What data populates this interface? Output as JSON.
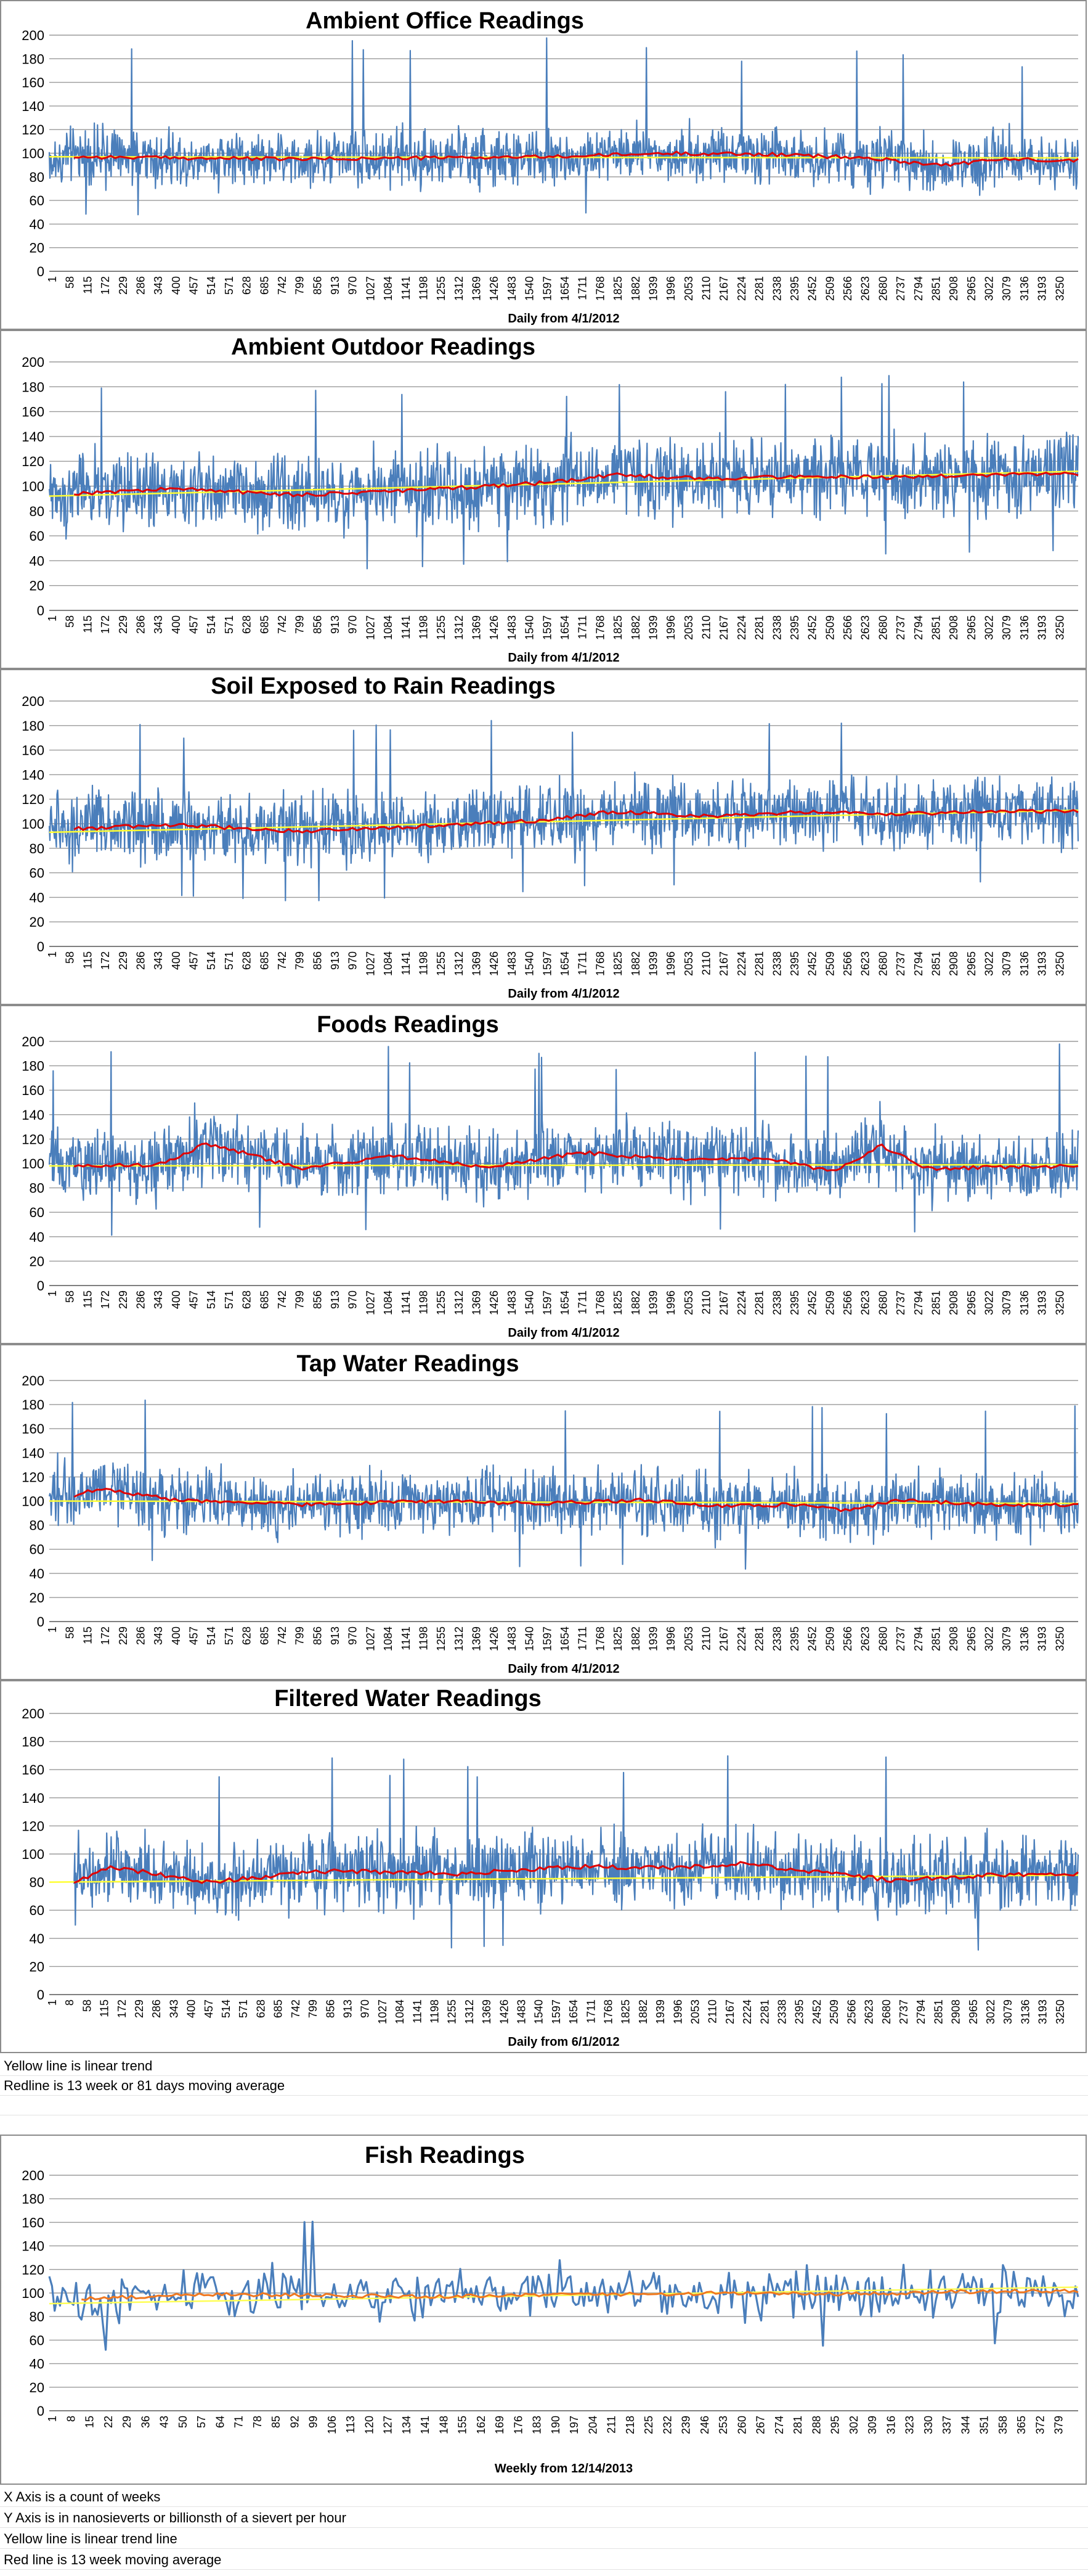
{
  "colors": {
    "readings_line": "#4a7ebb",
    "moving_average": "#e00000",
    "trend": "#ffff33",
    "fish_moving_average": "#f07820",
    "fish_trend": "#ffff55"
  },
  "notes_middle": [
    "Yellow line is linear trend",
    "Redline is 13 week or 81 days moving average"
  ],
  "notes_bottom": [
    "X Axis is a count of weeks",
    "Y Axis is in nanosieverts or billionsth of a sievert per hour",
    "Yellow line is linear trend line",
    "Red line is 13 week moving average"
  ],
  "chart_data": [
    {
      "type": "line",
      "title": "Ambient Office Readings",
      "xlabel": "Daily from 4/1/2012",
      "ylabel": "",
      "ylim": [
        0,
        200
      ],
      "y_ticks": [
        0,
        20,
        40,
        60,
        80,
        100,
        120,
        140,
        160,
        180,
        200
      ],
      "x_tick_labels": [
        "1",
        "58",
        "115",
        "172",
        "229",
        "286",
        "343",
        "400",
        "457",
        "514",
        "571",
        "628",
        "685",
        "742",
        "799",
        "856",
        "913",
        "970",
        "1027",
        "1084",
        "1141",
        "1198",
        "1255",
        "1312",
        "1369",
        "1426",
        "1483",
        "1540",
        "1597",
        "1654",
        "1711",
        "1768",
        "1825",
        "1882",
        "1939",
        "1996",
        "2053",
        "2110",
        "2167",
        "2224",
        "2281",
        "2338",
        "2395",
        "2452",
        "2509",
        "2566",
        "2623",
        "2680",
        "2737",
        "2794",
        "2851",
        "2908",
        "2965",
        "3022",
        "3079",
        "3136",
        "3193",
        "3250"
      ],
      "x_range": [
        1,
        3280
      ],
      "daily_readings": {
        "center": 95,
        "spread": 22,
        "spike_max": 198
      },
      "series": [
        {
          "kind": "trend",
          "start": 97,
          "end": 96
        },
        {
          "kind": "moving_average",
          "points": [
            [
              80,
              97
            ],
            [
              400,
              96
            ],
            [
              800,
              95
            ],
            [
              1200,
              96
            ],
            [
              1600,
              97
            ],
            [
              2000,
              100
            ],
            [
              2300,
              99
            ],
            [
              2600,
              96
            ],
            [
              2850,
              90
            ],
            [
              3050,
              95
            ],
            [
              3280,
              94
            ]
          ]
        }
      ],
      "grid": true
    },
    {
      "type": "line",
      "title": "Ambient Outdoor Readings",
      "xlabel": "Daily from 4/1/2012",
      "ylabel": "",
      "ylim": [
        0,
        200
      ],
      "y_ticks": [
        0,
        20,
        40,
        60,
        80,
        100,
        120,
        140,
        160,
        180,
        200
      ],
      "x_tick_labels": [
        "1",
        "58",
        "115",
        "172",
        "229",
        "286",
        "343",
        "400",
        "457",
        "514",
        "571",
        "628",
        "685",
        "742",
        "799",
        "856",
        "913",
        "970",
        "1027",
        "1084",
        "1141",
        "1198",
        "1255",
        "1312",
        "1369",
        "1426",
        "1483",
        "1540",
        "1597",
        "1654",
        "1711",
        "1768",
        "1825",
        "1882",
        "1939",
        "1996",
        "2053",
        "2110",
        "2167",
        "2224",
        "2281",
        "2338",
        "2395",
        "2452",
        "2509",
        "2566",
        "2623",
        "2680",
        "2737",
        "2794",
        "2851",
        "2908",
        "2965",
        "3022",
        "3079",
        "3136",
        "3193",
        "3250"
      ],
      "x_range": [
        1,
        3280
      ],
      "daily_readings": {
        "center": 100,
        "spread": 28,
        "spike_max": 190
      },
      "series": [
        {
          "kind": "trend",
          "start": 92,
          "end": 112
        },
        {
          "kind": "moving_average",
          "points": [
            [
              80,
              94
            ],
            [
              400,
              98
            ],
            [
              800,
              93
            ],
            [
              1200,
              97
            ],
            [
              1600,
              103
            ],
            [
              1800,
              109
            ],
            [
              2100,
              106
            ],
            [
              2400,
              108
            ],
            [
              2700,
              107
            ],
            [
              3000,
              109
            ],
            [
              3280,
              110
            ]
          ]
        }
      ],
      "grid": true
    },
    {
      "type": "line",
      "title": "Soil Exposed to Rain Readings",
      "xlabel": "Daily from 4/1/2012",
      "ylabel": "",
      "ylim": [
        0,
        200
      ],
      "y_ticks": [
        0,
        20,
        40,
        60,
        80,
        100,
        120,
        140,
        160,
        180,
        200
      ],
      "x_tick_labels": [
        "1",
        "58",
        "115",
        "172",
        "229",
        "286",
        "343",
        "400",
        "457",
        "514",
        "571",
        "628",
        "685",
        "742",
        "799",
        "856",
        "913",
        "970",
        "1027",
        "1084",
        "1141",
        "1198",
        "1255",
        "1312",
        "1369",
        "1426",
        "1483",
        "1540",
        "1597",
        "1654",
        "1711",
        "1768",
        "1825",
        "1882",
        "1939",
        "1996",
        "2053",
        "2110",
        "2167",
        "2224",
        "2281",
        "2338",
        "2395",
        "2452",
        "2509",
        "2566",
        "2623",
        "2680",
        "2737",
        "2794",
        "2851",
        "2908",
        "2965",
        "3022",
        "3079",
        "3136",
        "3193",
        "3250"
      ],
      "x_range": [
        1,
        3280
      ],
      "daily_readings": {
        "center": 100,
        "spread": 26,
        "spike_max": 188
      },
      "series": [
        {
          "kind": "trend",
          "start": 93,
          "end": 111
        },
        {
          "kind": "moving_average",
          "points": [
            [
              80,
              96
            ],
            [
              400,
              99
            ],
            [
              800,
              94
            ],
            [
              1200,
              98
            ],
            [
              1600,
              103
            ],
            [
              1800,
              110
            ],
            [
              2100,
              106
            ],
            [
              2450,
              110
            ],
            [
              2700,
              108
            ],
            [
              3000,
              110
            ],
            [
              3280,
              110
            ]
          ]
        }
      ],
      "grid": true
    },
    {
      "type": "line",
      "title": "Foods Readings",
      "xlabel": "Daily from 4/1/2012",
      "ylabel": "",
      "ylim": [
        0,
        200
      ],
      "y_ticks": [
        0,
        20,
        40,
        60,
        80,
        100,
        120,
        140,
        160,
        180,
        200
      ],
      "x_tick_labels": [
        "1",
        "58",
        "115",
        "172",
        "229",
        "286",
        "343",
        "400",
        "457",
        "514",
        "571",
        "628",
        "685",
        "742",
        "799",
        "856",
        "913",
        "970",
        "1027",
        "1084",
        "1141",
        "1198",
        "1255",
        "1312",
        "1369",
        "1426",
        "1483",
        "1540",
        "1597",
        "1654",
        "1711",
        "1768",
        "1825",
        "1882",
        "1939",
        "1996",
        "2053",
        "2110",
        "2167",
        "2224",
        "2281",
        "2338",
        "2395",
        "2452",
        "2509",
        "2566",
        "2623",
        "2680",
        "2737",
        "2794",
        "2851",
        "2908",
        "2965",
        "3022",
        "3079",
        "3136",
        "3193",
        "3250"
      ],
      "x_range": [
        1,
        3280
      ],
      "daily_readings": {
        "center": 98,
        "spread": 26,
        "spike_max": 200
      },
      "series": [
        {
          "kind": "trend",
          "start": 98,
          "end": 99
        },
        {
          "kind": "moving_average",
          "points": [
            [
              80,
              98
            ],
            [
              350,
              99
            ],
            [
              500,
              116
            ],
            [
              600,
              110
            ],
            [
              800,
              96
            ],
            [
              1100,
              106
            ],
            [
              1400,
              97
            ],
            [
              1700,
              109
            ],
            [
              2000,
              103
            ],
            [
              2300,
              104
            ],
            [
              2500,
              93
            ],
            [
              2650,
              115
            ],
            [
              2800,
              96
            ],
            [
              3100,
              97
            ],
            [
              3280,
              98
            ]
          ]
        }
      ],
      "grid": true
    },
    {
      "type": "line",
      "title": "Tap Water Readings",
      "xlabel": "Daily from 4/1/2012",
      "ylabel": "",
      "ylim": [
        0,
        200
      ],
      "y_ticks": [
        0,
        20,
        40,
        60,
        80,
        100,
        120,
        140,
        160,
        180,
        200
      ],
      "x_tick_labels": [
        "1",
        "58",
        "115",
        "172",
        "229",
        "286",
        "343",
        "400",
        "457",
        "514",
        "571",
        "628",
        "685",
        "742",
        "799",
        "856",
        "913",
        "970",
        "1027",
        "1084",
        "1141",
        "1198",
        "1255",
        "1312",
        "1369",
        "1426",
        "1483",
        "1540",
        "1597",
        "1654",
        "1711",
        "1768",
        "1825",
        "1882",
        "1939",
        "1996",
        "2053",
        "2110",
        "2167",
        "2224",
        "2281",
        "2338",
        "2395",
        "2452",
        "2509",
        "2566",
        "2623",
        "2680",
        "2737",
        "2794",
        "2851",
        "2908",
        "2965",
        "3022",
        "3079",
        "3136",
        "3193",
        "3250"
      ],
      "x_range": [
        1,
        3280
      ],
      "daily_readings": {
        "center": 98,
        "spread": 24,
        "spike_max": 188
      },
      "series": [
        {
          "kind": "trend",
          "start": 100,
          "end": 98
        },
        {
          "kind": "moving_average",
          "points": [
            [
              80,
              104
            ],
            [
              150,
              110
            ],
            [
              400,
              101
            ],
            [
              800,
              97
            ],
            [
              1200,
              100
            ],
            [
              1600,
              98
            ],
            [
              1900,
              101
            ],
            [
              2100,
              96
            ],
            [
              2400,
              97
            ],
            [
              2550,
              92
            ],
            [
              2700,
              101
            ],
            [
              3000,
              97
            ],
            [
              3280,
              97
            ]
          ]
        }
      ],
      "grid": true
    },
    {
      "type": "line",
      "title": "Filtered Water Readings",
      "xlabel": "Daily from 6/1/2012",
      "ylabel": "",
      "ylim": [
        0,
        200
      ],
      "y_ticks": [
        0,
        20,
        40,
        60,
        80,
        100,
        120,
        140,
        160,
        180,
        200
      ],
      "x_tick_labels": [
        "1",
        "8",
        "58",
        "115",
        "172",
        "229",
        "286",
        "343",
        "400",
        "457",
        "514",
        "571",
        "628",
        "685",
        "742",
        "799",
        "856",
        "913",
        "970",
        "1027",
        "1084",
        "1141",
        "1198",
        "1255",
        "1312",
        "1369",
        "1426",
        "1483",
        "1540",
        "1597",
        "1654",
        "1711",
        "1768",
        "1825",
        "1882",
        "1939",
        "1996",
        "2053",
        "2110",
        "2167",
        "2224",
        "2281",
        "2338",
        "2395",
        "2452",
        "2509",
        "2566",
        "2623",
        "2680",
        "2737",
        "2794",
        "2851",
        "2908",
        "2965",
        "3022",
        "3079",
        "3136",
        "3193",
        "3250"
      ],
      "x_range": [
        1,
        3280
      ],
      "daily_readings": {
        "center": 85,
        "spread": 24,
        "spike_max": 176
      },
      "series": [
        {
          "kind": "trend",
          "start": 80,
          "end": 85
        },
        {
          "kind": "moving_average",
          "points": [
            [
              80,
              80
            ],
            [
              200,
              91
            ],
            [
              500,
              80
            ],
            [
              900,
              88
            ],
            [
              1300,
              86
            ],
            [
              1700,
              91
            ],
            [
              2000,
              90
            ],
            [
              2200,
              93
            ],
            [
              2500,
              86
            ],
            [
              2700,
              81
            ],
            [
              3000,
              85
            ],
            [
              3280,
              86
            ]
          ]
        }
      ],
      "grid": true
    },
    {
      "type": "line",
      "title": "Fish Readings",
      "xlabel": "Weekly from 12/14/2013",
      "ylabel": "",
      "ylim": [
        0,
        200
      ],
      "y_ticks": [
        0,
        20,
        40,
        60,
        80,
        100,
        120,
        140,
        160,
        180,
        200
      ],
      "x_tick_labels": [
        "1",
        "8",
        "15",
        "22",
        "29",
        "36",
        "43",
        "50",
        "57",
        "64",
        "71",
        "78",
        "85",
        "92",
        "99",
        "106",
        "113",
        "120",
        "127",
        "134",
        "141",
        "148",
        "155",
        "162",
        "169",
        "176",
        "183",
        "190",
        "197",
        "204",
        "211",
        "218",
        "225",
        "232",
        "239",
        "246",
        "253",
        "260",
        "267",
        "274",
        "281",
        "288",
        "295",
        "302",
        "309",
        "316",
        "323",
        "330",
        "337",
        "344",
        "351",
        "358",
        "365",
        "372",
        "379"
      ],
      "x_range": [
        1,
        384
      ],
      "weekly_readings": {
        "center": 98,
        "spread": 20,
        "spike_max": 170
      },
      "series": [
        {
          "kind": "trend",
          "start": 91,
          "end": 105
        },
        {
          "kind": "moving_average",
          "points": [
            [
              13,
              95
            ],
            [
              60,
              99
            ],
            [
              100,
              98
            ],
            [
              140,
              97
            ],
            [
              180,
              98
            ],
            [
              220,
              99
            ],
            [
              260,
              100
            ],
            [
              300,
              99
            ],
            [
              340,
              101
            ],
            [
              384,
              102
            ]
          ]
        }
      ],
      "grid": true
    }
  ]
}
